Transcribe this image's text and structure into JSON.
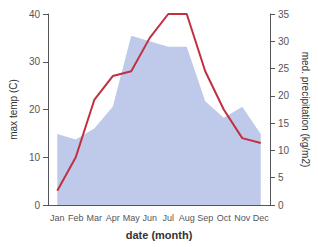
{
  "chart_data": {
    "type": "line",
    "categories": [
      "Jan",
      "Feb",
      "Mar",
      "Apr",
      "May",
      "Jun",
      "Jul",
      "Aug",
      "Sep",
      "Oct",
      "Nov",
      "Dec"
    ],
    "series": [
      {
        "type": "area",
        "axis": "y2",
        "color": "#b8c4e8",
        "values": [
          13,
          12,
          14,
          18,
          31,
          30,
          29,
          29,
          19,
          16,
          18,
          13
        ]
      },
      {
        "type": "line",
        "color": "#c03040",
        "values": [
          3,
          10,
          22,
          27,
          28,
          35,
          40,
          40,
          28,
          20,
          14,
          13
        ]
      }
    ],
    "xlabel": "date (month)",
    "ylabel": "max temp (C)",
    "y2label": "med. precipitation (kg/m2)",
    "ylim": [
      0,
      40
    ],
    "yticks": [
      0,
      10,
      20,
      30,
      40
    ],
    "y2lim": [
      0,
      35
    ],
    "y2ticks": [
      0,
      5,
      10,
      15,
      20,
      25,
      30,
      35
    ],
    "grid": false
  }
}
